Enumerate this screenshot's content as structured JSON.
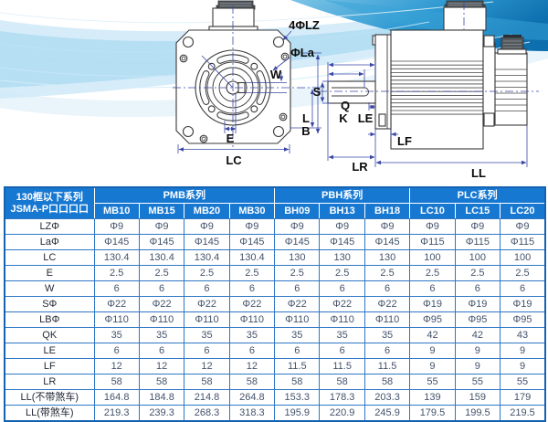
{
  "diagram": {
    "labels": {
      "lz": "4ΦLZ",
      "la": "ΦLa",
      "w": "W",
      "s": "S",
      "q": "Q",
      "k": "K",
      "le": "LE",
      "l": "L",
      "b": "B",
      "e": "E",
      "lc": "LC",
      "lf": "LF",
      "lr": "LR",
      "ll": "LL"
    }
  },
  "table": {
    "corner_header": [
      "130框以下系列",
      "JSMA-P口口口口"
    ],
    "groups": [
      {
        "label": "PMB系列",
        "span": 4
      },
      {
        "label": "PBH系列",
        "span": 3
      },
      {
        "label": "PLC系列",
        "span": 3
      }
    ],
    "models": [
      "MB10",
      "MB15",
      "MB20",
      "MB30",
      "BH09",
      "BH13",
      "BH18",
      "LC10",
      "LC15",
      "LC20"
    ],
    "rows": [
      {
        "label": "LZΦ",
        "values": [
          "Φ9",
          "Φ9",
          "Φ9",
          "Φ9",
          "Φ9",
          "Φ9",
          "Φ9",
          "Φ9",
          "Φ9",
          "Φ9"
        ]
      },
      {
        "label": "LaΦ",
        "values": [
          "Φ145",
          "Φ145",
          "Φ145",
          "Φ145",
          "Φ145",
          "Φ145",
          "Φ145",
          "Φ115",
          "Φ115",
          "Φ115"
        ]
      },
      {
        "label": "LC",
        "values": [
          "130.4",
          "130.4",
          "130.4",
          "130.4",
          "130",
          "130",
          "130",
          "100",
          "100",
          "100"
        ]
      },
      {
        "label": "E",
        "values": [
          "2.5",
          "2.5",
          "2.5",
          "2.5",
          "2.5",
          "2.5",
          "2.5",
          "2.5",
          "2.5",
          "2.5"
        ]
      },
      {
        "label": "W",
        "values": [
          "6",
          "6",
          "6",
          "6",
          "6",
          "6",
          "6",
          "6",
          "6",
          "6"
        ]
      },
      {
        "label": "SΦ",
        "values": [
          "Φ22",
          "Φ22",
          "Φ22",
          "Φ22",
          "Φ22",
          "Φ22",
          "Φ22",
          "Φ19",
          "Φ19",
          "Φ19"
        ]
      },
      {
        "label": "LBΦ",
        "values": [
          "Φ110",
          "Φ110",
          "Φ110",
          "Φ110",
          "Φ110",
          "Φ110",
          "Φ110",
          "Φ95",
          "Φ95",
          "Φ95"
        ]
      },
      {
        "label": "QK",
        "values": [
          "35",
          "35",
          "35",
          "35",
          "35",
          "35",
          "35",
          "42",
          "42",
          "43"
        ]
      },
      {
        "label": "LE",
        "values": [
          "6",
          "6",
          "6",
          "6",
          "6",
          "6",
          "6",
          "9",
          "9",
          "9"
        ]
      },
      {
        "label": "LF",
        "values": [
          "12",
          "12",
          "12",
          "12",
          "11.5",
          "11.5",
          "11.5",
          "9",
          "9",
          "9"
        ]
      },
      {
        "label": "LR",
        "values": [
          "58",
          "58",
          "58",
          "58",
          "58",
          "58",
          "58",
          "55",
          "55",
          "55"
        ]
      },
      {
        "label": "LL(不带煞车)",
        "values": [
          "164.8",
          "184.8",
          "214.8",
          "264.8",
          "153.3",
          "178.3",
          "203.3",
          "139",
          "159",
          "179"
        ]
      },
      {
        "label": "LL(带煞车)",
        "values": [
          "219.3",
          "239.3",
          "268.3",
          "318.3",
          "195.9",
          "220.9",
          "245.9",
          "179.5",
          "199.5",
          "219.5"
        ]
      }
    ]
  },
  "colors": {
    "header_blue": "#1778d2",
    "grid_blue": "#2e77c4",
    "outer_border_blue": "#1463b2",
    "wave_dark_blue": "#1180c0",
    "wave_light_blue": "#aedcf3",
    "dimension_navy": "#3a47a5"
  }
}
